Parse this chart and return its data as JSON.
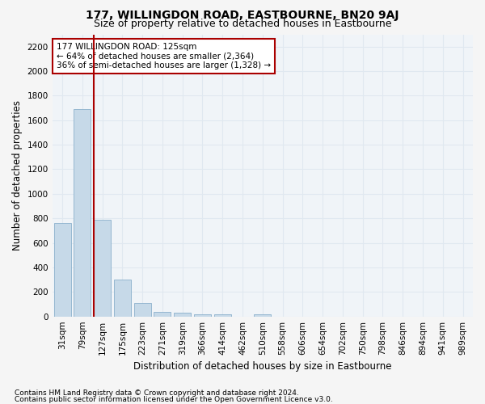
{
  "title": "177, WILLINGDON ROAD, EASTBOURNE, BN20 9AJ",
  "subtitle": "Size of property relative to detached houses in Eastbourne",
  "xlabel": "Distribution of detached houses by size in Eastbourne",
  "ylabel": "Number of detached properties",
  "categories": [
    "31sqm",
    "79sqm",
    "127sqm",
    "175sqm",
    "223sqm",
    "271sqm",
    "319sqm",
    "366sqm",
    "414sqm",
    "462sqm",
    "510sqm",
    "558sqm",
    "606sqm",
    "654sqm",
    "702sqm",
    "750sqm",
    "798sqm",
    "846sqm",
    "894sqm",
    "941sqm",
    "989sqm"
  ],
  "values": [
    760,
    1690,
    790,
    300,
    110,
    40,
    30,
    20,
    20,
    0,
    20,
    0,
    0,
    0,
    0,
    0,
    0,
    0,
    0,
    0,
    0
  ],
  "bar_color": "#c6d9e8",
  "bar_edgecolor": "#8ab0cc",
  "vline_x_index": 2,
  "vline_color": "#aa0000",
  "annotation_text": "177 WILLINGDON ROAD: 125sqm\n← 64% of detached houses are smaller (2,364)\n36% of semi-detached houses are larger (1,328) →",
  "annotation_box_color": "white",
  "annotation_box_edgecolor": "#aa0000",
  "ylim": [
    0,
    2300
  ],
  "yticks": [
    0,
    200,
    400,
    600,
    800,
    1000,
    1200,
    1400,
    1600,
    1800,
    2000,
    2200
  ],
  "footer1": "Contains HM Land Registry data © Crown copyright and database right 2024.",
  "footer2": "Contains public sector information licensed under the Open Government Licence v3.0.",
  "bg_color": "#f5f5f5",
  "plot_bg_color": "#f0f4f8",
  "grid_color": "#e0e8f0",
  "title_fontsize": 10,
  "subtitle_fontsize": 9,
  "axis_label_fontsize": 8.5,
  "tick_fontsize": 7.5,
  "annotation_fontsize": 7.5,
  "footer_fontsize": 6.5
}
